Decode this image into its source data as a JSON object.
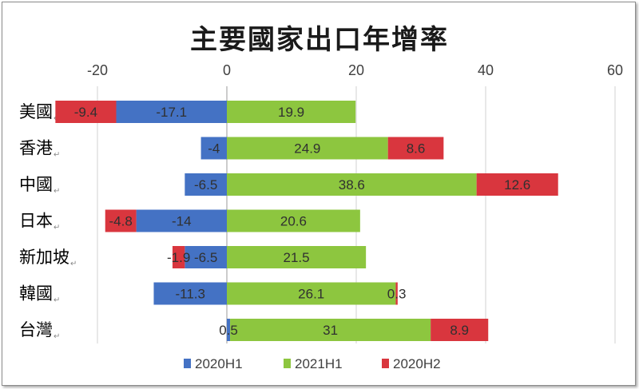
{
  "chart_data": {
    "type": "bar",
    "orientation": "horizontal",
    "stacked": true,
    "title": "主要國家出口年增率",
    "categories": [
      "美國",
      "香港",
      "中國",
      "日本",
      "新加坡",
      "韓國",
      "台灣"
    ],
    "series": [
      {
        "name": "2020H1",
        "color": "#4472c4",
        "values": [
          -17.1,
          -4,
          -6.5,
          -14,
          -6.5,
          -11.3,
          0.5
        ]
      },
      {
        "name": "2021H1",
        "color": "#8dc63f",
        "values": [
          19.9,
          24.9,
          38.6,
          20.6,
          21.5,
          26.1,
          31
        ]
      },
      {
        "name": "2020H2",
        "color": "#d9363e",
        "values": [
          -9.4,
          8.6,
          12.6,
          -4.8,
          -1.9,
          0.3,
          8.9
        ]
      }
    ],
    "xlim": [
      -20,
      60
    ],
    "xticks": [
      -20,
      0,
      20,
      40,
      60
    ],
    "grid": true,
    "legend_position": "bottom"
  }
}
